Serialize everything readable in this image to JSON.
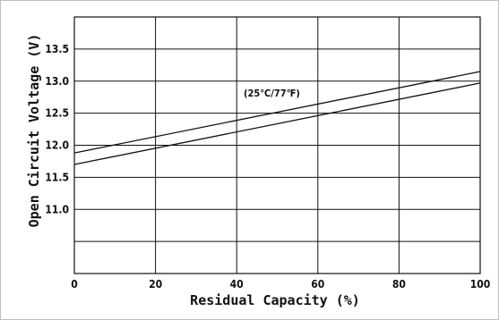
{
  "chart_data": {
    "type": "line",
    "title": "",
    "xlabel": "Residual Capacity (%)",
    "ylabel": "Open Circuit Voltage (V)",
    "xlim": [
      0,
      100
    ],
    "ylim": [
      10.0,
      14.0
    ],
    "x_ticks": [
      0,
      20,
      40,
      60,
      80,
      100
    ],
    "x_tick_labels": [
      "0",
      "20",
      "40",
      "60",
      "80",
      "100"
    ],
    "y_ticks": [
      11.0,
      11.5,
      12.0,
      12.5,
      13.0,
      13.5
    ],
    "y_tick_labels": [
      "11.0",
      "11.5",
      "12.0",
      "12.5",
      "13.0",
      "13.5"
    ],
    "y_gridlines": [
      10.5,
      11.0,
      11.5,
      12.0,
      12.5,
      13.0,
      13.5
    ],
    "grid": true,
    "annotation": "(25℃/77℉)",
    "series": [
      {
        "x": [
          0,
          100
        ],
        "y": [
          11.88,
          13.15
        ]
      },
      {
        "x": [
          0,
          100
        ],
        "y": [
          11.7,
          12.97
        ]
      }
    ]
  }
}
